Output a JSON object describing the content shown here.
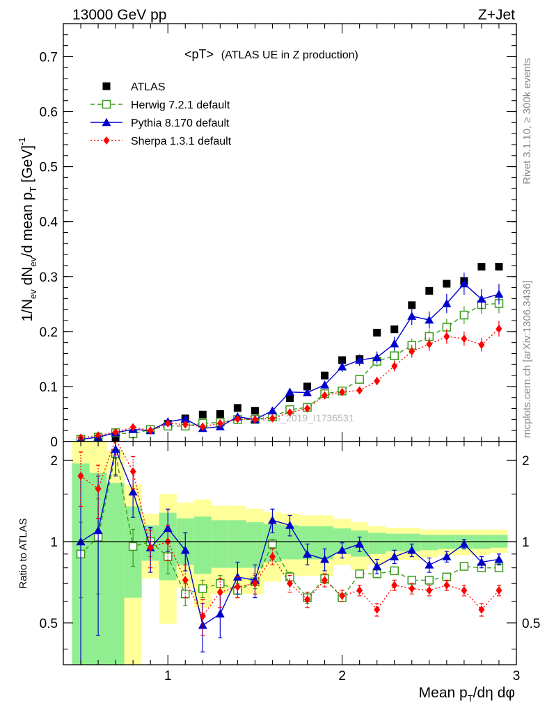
{
  "header": {
    "left_label": "13000 GeV pp",
    "right_label": "Z+Jet"
  },
  "side_labels": {
    "rivet": "Rivet 3.1.10, ≥ 300k events",
    "mcplots": "mcplots.cern.ch [arXiv:1306.3436]"
  },
  "watermark": "ATLAS_2019_I1736531",
  "colors": {
    "atlas": "#000000",
    "herwig": "#3a9a1a",
    "pythia": "#0000cc",
    "sherpa": "#ff0000",
    "band_green": "#90ee90",
    "band_yellow": "#ffff99"
  },
  "chart_data": [
    {
      "type": "scatter",
      "panel": "main",
      "title": "<pT> (ATLAS UE in Z production)",
      "title_main": "<pT>",
      "title_rest": "(ATLAS UE in Z production)",
      "xlabel": "Mean pT/dη dφ",
      "ylabel": "1/Nev dNev/d mean pT [GeV]-1",
      "xlim": [
        0.4,
        3.0
      ],
      "ylim": [
        0,
        0.76
      ],
      "yticks": [
        0,
        0.1,
        0.2,
        0.3,
        0.4,
        0.5,
        0.6,
        0.7
      ],
      "ytick_labels": [
        "0",
        "0.1",
        "0.2",
        "0.3",
        "0.4",
        "0.5",
        "0.6",
        "0.7"
      ],
      "legend_position": "top-left",
      "x": [
        0.5,
        0.6,
        0.7,
        0.8,
        0.9,
        1.0,
        1.1,
        1.2,
        1.3,
        1.4,
        1.5,
        1.6,
        1.7,
        1.8,
        1.9,
        2.0,
        2.1,
        2.2,
        2.3,
        2.4,
        2.5,
        2.6,
        2.7,
        2.8,
        2.9
      ],
      "series": [
        {
          "name": "ATLAS",
          "key": "atlas",
          "marker": "square-filled",
          "values": [
            0.004,
            0.007,
            0.007,
            0.015,
            0.022,
            0.032,
            0.042,
            0.049,
            0.05,
            0.061,
            0.056,
            0.046,
            0.079,
            0.1,
            0.12,
            0.148,
            0.15,
            0.198,
            0.204,
            0.248,
            0.274,
            0.287,
            0.292,
            0.318,
            0.318
          ]
        },
        {
          "name": "Herwig 7.2.1 default",
          "key": "herwig",
          "marker": "square-open",
          "dash": "6,4",
          "values": [
            0.004,
            0.008,
            0.016,
            0.014,
            0.022,
            0.028,
            0.028,
            0.033,
            0.035,
            0.04,
            0.04,
            0.045,
            0.058,
            0.062,
            0.087,
            0.092,
            0.113,
            0.146,
            0.156,
            0.175,
            0.191,
            0.208,
            0.23,
            0.249,
            0.251
          ]
        },
        {
          "name": "Pythia 8.170 default",
          "key": "pythia",
          "marker": "triangle",
          "dash": "",
          "values": [
            0.004,
            0.008,
            0.016,
            0.022,
            0.02,
            0.036,
            0.041,
            0.024,
            0.027,
            0.045,
            0.04,
            0.056,
            0.09,
            0.089,
            0.103,
            0.136,
            0.148,
            0.153,
            0.178,
            0.228,
            0.221,
            0.251,
            0.287,
            0.259,
            0.268
          ]
        },
        {
          "name": "Sherpa 1.3.1 default",
          "key": "sherpa",
          "marker": "diamond",
          "dash": "2,3",
          "values": [
            0.007,
            0.011,
            0.017,
            0.026,
            0.02,
            0.033,
            0.031,
            0.027,
            0.033,
            0.041,
            0.04,
            0.042,
            0.053,
            0.06,
            0.084,
            0.09,
            0.093,
            0.11,
            0.137,
            0.164,
            0.177,
            0.191,
            0.187,
            0.176,
            0.205
          ]
        }
      ]
    },
    {
      "type": "scatter",
      "panel": "ratio",
      "ylabel": "Ratio to ATLAS",
      "xlabel": "Mean pT/dη dφ",
      "xlim": [
        0.4,
        3.0
      ],
      "ylim": [
        0.35,
        2.35
      ],
      "xticks": [
        1,
        2,
        3
      ],
      "xtick_labels": [
        "1",
        "2",
        "3"
      ],
      "yticks": [
        0.5,
        1,
        2
      ],
      "ytick_labels": [
        "0.5",
        "1",
        "2"
      ],
      "x": [
        0.5,
        0.6,
        0.7,
        0.8,
        0.9,
        1.0,
        1.1,
        1.2,
        1.3,
        1.4,
        1.5,
        1.6,
        1.7,
        1.8,
        1.9,
        2.0,
        2.1,
        2.2,
        2.3,
        2.4,
        2.5,
        2.6,
        2.7,
        2.8,
        2.9
      ],
      "bands": {
        "green_lo": [
          0.35,
          0.35,
          0.35,
          0.62,
          0.85,
          0.72,
          0.82,
          0.76,
          0.8,
          0.8,
          0.8,
          0.84,
          0.86,
          0.86,
          0.86,
          0.9,
          0.88,
          0.9,
          0.92,
          0.92,
          0.93,
          0.94,
          0.94,
          0.94,
          0.95
        ],
        "green_hi": [
          1.95,
          1.8,
          1.65,
          1.35,
          1.15,
          1.28,
          1.22,
          1.24,
          1.2,
          1.2,
          1.18,
          1.16,
          1.15,
          1.14,
          1.14,
          1.12,
          1.1,
          1.08,
          1.07,
          1.07,
          1.06,
          1.06,
          1.06,
          1.06,
          1.06
        ]
      },
      "series": [
        {
          "name": "Herwig 7.2.1 default",
          "key": "herwig",
          "marker": "square-open",
          "dash": "6,4",
          "values": [
            0.9,
            1.04,
            2.12,
            0.96,
            1.0,
            0.88,
            0.64,
            0.67,
            0.7,
            0.66,
            0.71,
            0.98,
            0.74,
            0.62,
            0.73,
            0.62,
            0.76,
            0.76,
            0.78,
            0.72,
            0.72,
            0.74,
            0.81,
            0.8,
            0.8
          ],
          "errors": [
            0.28,
            0.4,
            0.35,
            0.15,
            0.12,
            0.12,
            0.06,
            0.05,
            0.05,
            0.04,
            0.04,
            0.04,
            0.03,
            0.03,
            0.03,
            0.02,
            0.02,
            0.02,
            0.02,
            0.02,
            0.02,
            0.02,
            0.02,
            0.02,
            0.02
          ]
        },
        {
          "name": "Pythia 8.170 default",
          "key": "pythia",
          "marker": "triangle",
          "dash": "",
          "values": [
            1.0,
            1.1,
            2.2,
            1.53,
            0.95,
            1.12,
            0.93,
            0.49,
            0.54,
            0.74,
            0.72,
            1.2,
            1.15,
            0.9,
            0.86,
            0.93,
            0.98,
            0.81,
            0.88,
            0.93,
            0.82,
            0.88,
            0.98,
            0.84,
            0.86
          ],
          "errors": [
            0.78,
            0.65,
            0.45,
            0.3,
            0.18,
            0.2,
            0.15,
            0.1,
            0.1,
            0.1,
            0.1,
            0.12,
            0.1,
            0.08,
            0.08,
            0.06,
            0.06,
            0.05,
            0.05,
            0.05,
            0.05,
            0.04,
            0.04,
            0.04,
            0.04
          ]
        },
        {
          "name": "Sherpa 1.3.1 default",
          "key": "sherpa",
          "marker": "diamond",
          "dash": "2,3",
          "values": [
            1.75,
            1.57,
            2.4,
            1.82,
            0.95,
            1.0,
            0.72,
            0.53,
            0.65,
            0.68,
            0.7,
            0.88,
            0.7,
            0.61,
            0.72,
            0.63,
            0.66,
            0.56,
            0.69,
            0.67,
            0.66,
            0.69,
            0.66,
            0.56,
            0.66
          ],
          "errors": [
            0.4,
            0.35,
            0.3,
            0.25,
            0.15,
            0.15,
            0.1,
            0.08,
            0.08,
            0.06,
            0.06,
            0.06,
            0.05,
            0.04,
            0.04,
            0.03,
            0.03,
            0.03,
            0.03,
            0.03,
            0.03,
            0.03,
            0.03,
            0.03,
            0.03
          ]
        }
      ]
    }
  ]
}
